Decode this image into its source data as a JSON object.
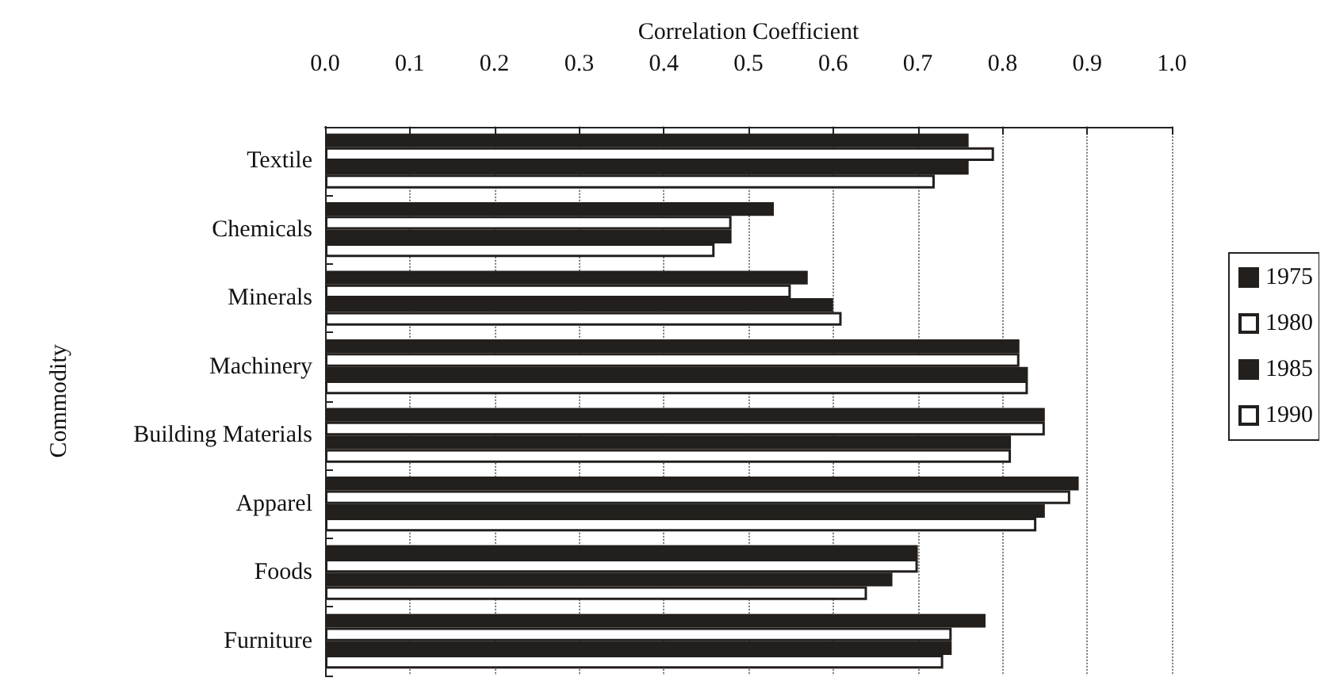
{
  "chart_data": {
    "type": "bar",
    "orientation": "horizontal",
    "xlabel": "Correlation Coefficient",
    "ylabel": "Commodity",
    "categories": [
      "Textile",
      "Chemicals",
      "Minerals",
      "Machinery",
      "Building Materials",
      "Apparel",
      "Foods",
      "Furniture"
    ],
    "series": [
      {
        "name": "1975",
        "color": "#231f1c",
        "values": [
          0.76,
          0.53,
          0.57,
          0.82,
          0.85,
          0.89,
          0.7,
          0.78
        ]
      },
      {
        "name": "1980",
        "color": "#ffffff",
        "values": [
          0.79,
          0.48,
          0.55,
          0.82,
          0.85,
          0.88,
          0.7,
          0.74
        ]
      },
      {
        "name": "1985",
        "color": "#231f1c",
        "values": [
          0.76,
          0.48,
          0.6,
          0.83,
          0.81,
          0.85,
          0.67,
          0.74
        ]
      },
      {
        "name": "1990",
        "color": "#ffffff",
        "values": [
          0.72,
          0.46,
          0.61,
          0.83,
          0.81,
          0.84,
          0.64,
          0.73
        ]
      }
    ],
    "xlim": [
      0,
      1
    ],
    "xticks": [
      {
        "value": 0,
        "label": "0.0"
      },
      0.1,
      0.2,
      0.3,
      0.4,
      0.5,
      0.6,
      0.7,
      0.8,
      0.9,
      {
        "value": 1,
        "label": "1.0"
      }
    ],
    "grid": "x",
    "legend": "right"
  }
}
